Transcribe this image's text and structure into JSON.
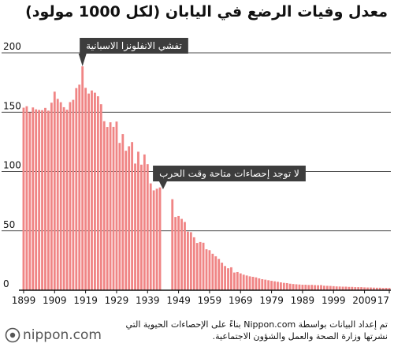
{
  "title": "معدل وفيات الرضع في اليابان (لكل 1000 مولود)",
  "annotations": [
    {
      "text": "تفشي الانفلونزا الاسبانية",
      "year": 1918
    },
    {
      "text": "لا توجد إحصاءات متاحة وقت الحرب",
      "year": 1944
    }
  ],
  "source_lines": [
    "تم إعداد البيانات بواسطة Nippon.com بناءً على الإحصاءات الحيوية التي",
    "نشرتها وزارة الصحة والعمل والشؤون الاجتماعية."
  ],
  "logo": {
    "text": "nippon.com",
    "icon": "nippon-logo-icon"
  },
  "colors": {
    "bar": "#f08585",
    "annotation_bg": "#3d3d3d",
    "axis": "#111111",
    "grid": "#111111"
  },
  "chart_data": {
    "type": "bar",
    "title": "معدل وفيات الرضع في اليابان (لكل 1000 مولود)",
    "xlabel": "",
    "ylabel": "",
    "ylim": [
      0,
      200
    ],
    "yticks": [
      0,
      50,
      100,
      150,
      200
    ],
    "xtick_labels": [
      "1899",
      "1909",
      "1919",
      "1929",
      "1939",
      "1949",
      "1959",
      "1969",
      "1979",
      "1989",
      "1999",
      "2009",
      "17"
    ],
    "xtick_years": [
      1899,
      1909,
      1919,
      1929,
      1939,
      1949,
      1959,
      1969,
      1979,
      1989,
      1999,
      2009,
      2017
    ],
    "x_range": [
      1899,
      2017
    ],
    "grid": true,
    "missing_years": [
      1944,
      1945,
      1946
    ],
    "categories": [
      1899,
      1900,
      1901,
      1902,
      1903,
      1904,
      1905,
      1906,
      1907,
      1908,
      1909,
      1910,
      1911,
      1912,
      1913,
      1914,
      1915,
      1916,
      1917,
      1918,
      1919,
      1920,
      1921,
      1922,
      1923,
      1924,
      1925,
      1926,
      1927,
      1928,
      1929,
      1930,
      1931,
      1932,
      1933,
      1934,
      1935,
      1936,
      1937,
      1938,
      1939,
      1940,
      1941,
      1942,
      1943,
      1947,
      1948,
      1949,
      1950,
      1951,
      1952,
      1953,
      1954,
      1955,
      1956,
      1957,
      1958,
      1959,
      1960,
      1961,
      1962,
      1963,
      1964,
      1965,
      1966,
      1967,
      1968,
      1969,
      1970,
      1971,
      1972,
      1973,
      1974,
      1975,
      1976,
      1977,
      1978,
      1979,
      1980,
      1981,
      1982,
      1983,
      1984,
      1985,
      1986,
      1987,
      1988,
      1989,
      1990,
      1991,
      1992,
      1993,
      1994,
      1995,
      1996,
      1997,
      1998,
      1999,
      2000,
      2001,
      2002,
      2003,
      2004,
      2005,
      2006,
      2007,
      2008,
      2009,
      2010,
      2011,
      2012,
      2013,
      2014,
      2015,
      2016,
      2017
    ],
    "values": [
      153.8,
      155.0,
      149.9,
      154.0,
      152.4,
      151.9,
      151.7,
      153.6,
      151.3,
      158.0,
      167.3,
      161.2,
      158.4,
      154.2,
      152.1,
      158.5,
      160.4,
      170.3,
      173.2,
      188.6,
      170.5,
      165.7,
      168.3,
      166.4,
      163.4,
      156.7,
      142.4,
      137.5,
      141.5,
      137.6,
      142.1,
      124.1,
      131.5,
      117.5,
      121.3,
      124.8,
      106.7,
      116.7,
      105.8,
      114.4,
      106.2,
      90.0,
      84.1,
      85.5,
      86.6,
      76.7,
      61.7,
      62.5,
      60.1,
      57.5,
      49.4,
      48.9,
      44.6,
      39.8,
      40.6,
      40.0,
      34.5,
      33.7,
      30.7,
      28.6,
      26.4,
      23.2,
      20.4,
      18.5,
      19.3,
      14.9,
      15.3,
      14.2,
      13.1,
      12.4,
      11.7,
      11.3,
      10.8,
      10.0,
      9.3,
      8.9,
      8.4,
      7.9,
      7.5,
      7.1,
      6.6,
      6.2,
      6.0,
      5.5,
      5.2,
      5.0,
      4.8,
      4.6,
      4.6,
      4.4,
      4.5,
      4.3,
      4.2,
      4.3,
      3.8,
      3.7,
      3.6,
      3.4,
      3.2,
      3.1,
      3.0,
      3.0,
      2.8,
      2.8,
      2.6,
      2.6,
      2.6,
      2.4,
      2.3,
      2.3,
      2.2,
      2.1,
      2.1,
      1.9,
      2.0,
      1.9
    ]
  }
}
